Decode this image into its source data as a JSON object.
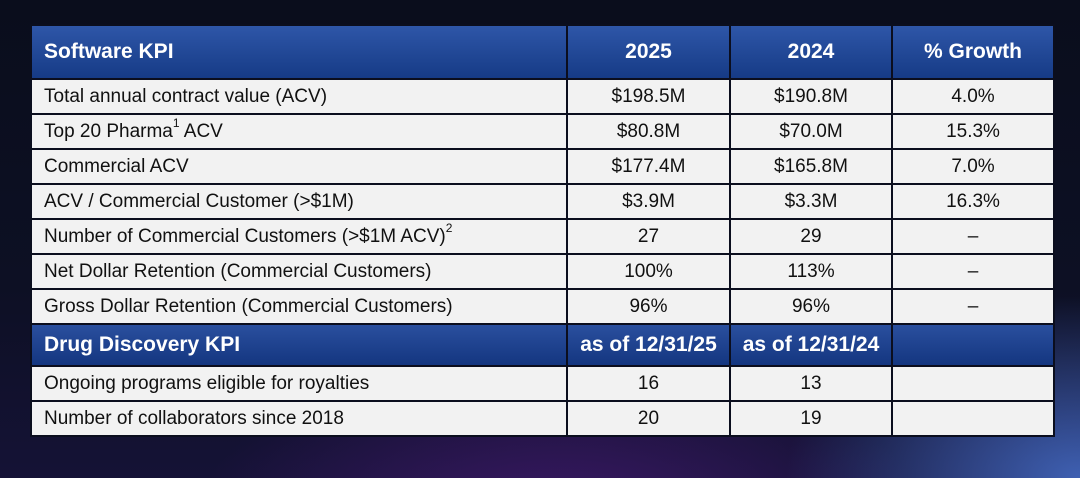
{
  "software_kpi": {
    "header": {
      "title": "Software KPI",
      "col1": "2025",
      "col2": "2024",
      "col3": "% Growth"
    },
    "rows": [
      {
        "label": "Total annual contract value (ACV)",
        "sup": "",
        "label_suffix": "",
        "sup2": "",
        "v2025": "$198.5M",
        "v2024": "$190.8M",
        "growth": "4.0%"
      },
      {
        "label": "Top 20 Pharma",
        "sup": "1",
        "label_suffix": " ACV",
        "sup2": "",
        "v2025": "$80.8M",
        "v2024": "$70.0M",
        "growth": "15.3%"
      },
      {
        "label": "Commercial ACV",
        "sup": "",
        "label_suffix": "",
        "sup2": "",
        "v2025": "$177.4M",
        "v2024": "$165.8M",
        "growth": "7.0%"
      },
      {
        "label": "ACV / Commercial Customer (>$1M)",
        "sup": "",
        "label_suffix": "",
        "sup2": "",
        "v2025": "$3.9M",
        "v2024": "$3.3M",
        "growth": "16.3%"
      },
      {
        "label": "Number of Commercial Customers (>$1M ACV)",
        "sup": "",
        "label_suffix": "",
        "sup2": "2",
        "v2025": "27",
        "v2024": "29",
        "growth": "–"
      },
      {
        "label": "Net Dollar Retention (Commercial Customers)",
        "sup": "",
        "label_suffix": "",
        "sup2": "",
        "v2025": "100%",
        "v2024": "113%",
        "growth": "–"
      },
      {
        "label": "Gross Dollar Retention (Commercial Customers)",
        "sup": "",
        "label_suffix": "",
        "sup2": "",
        "v2025": "96%",
        "v2024": "96%",
        "growth": "–"
      }
    ]
  },
  "drug_discovery_kpi": {
    "header": {
      "title": "Drug Discovery KPI",
      "col1": "as of 12/31/25",
      "col2": "as of 12/31/24",
      "col3": ""
    },
    "rows": [
      {
        "label": "Ongoing programs eligible for royalties",
        "v2025": "16",
        "v2024": "13",
        "growth": ""
      },
      {
        "label": "Number of collaborators since 2018",
        "v2025": "20",
        "v2024": "19",
        "growth": ""
      }
    ]
  }
}
